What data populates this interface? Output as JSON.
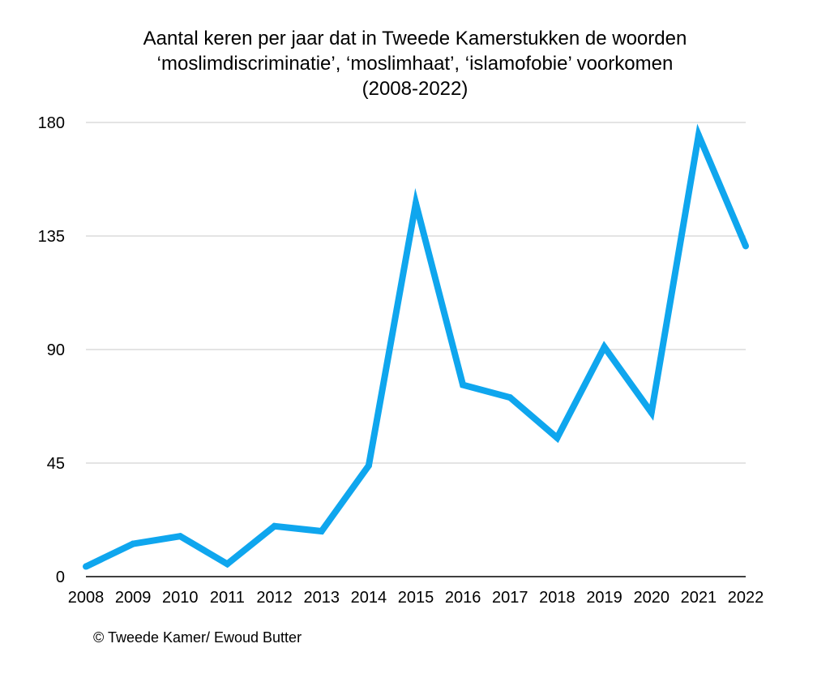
{
  "chart_data": {
    "type": "line",
    "title_lines": [
      "Aantal keren per jaar dat in Tweede Kamerstukken de woorden",
      "‘moslimdiscriminatie’, ‘moslimhaat’, ‘islamofobie’ voorkomen",
      "(2008-2022)"
    ],
    "categories": [
      "2008",
      "2009",
      "2010",
      "2011",
      "2012",
      "2013",
      "2014",
      "2015",
      "2016",
      "2017",
      "2018",
      "2019",
      "2020",
      "2021",
      "2022"
    ],
    "series": [
      {
        "values": [
          4,
          13,
          16,
          5,
          20,
          18,
          44,
          148,
          76,
          71,
          55,
          91,
          65,
          175,
          131
        ]
      }
    ],
    "yticks": [
      "180",
      "135",
      "90",
      "45",
      "0"
    ],
    "ylim": [
      0,
      180
    ],
    "grid": true,
    "line_color": "#0fa6ee",
    "grid_color": "#c8c8c8",
    "axis_color": "#000000",
    "credit": "© Tweede Kamer/ Ewoud Butter"
  }
}
